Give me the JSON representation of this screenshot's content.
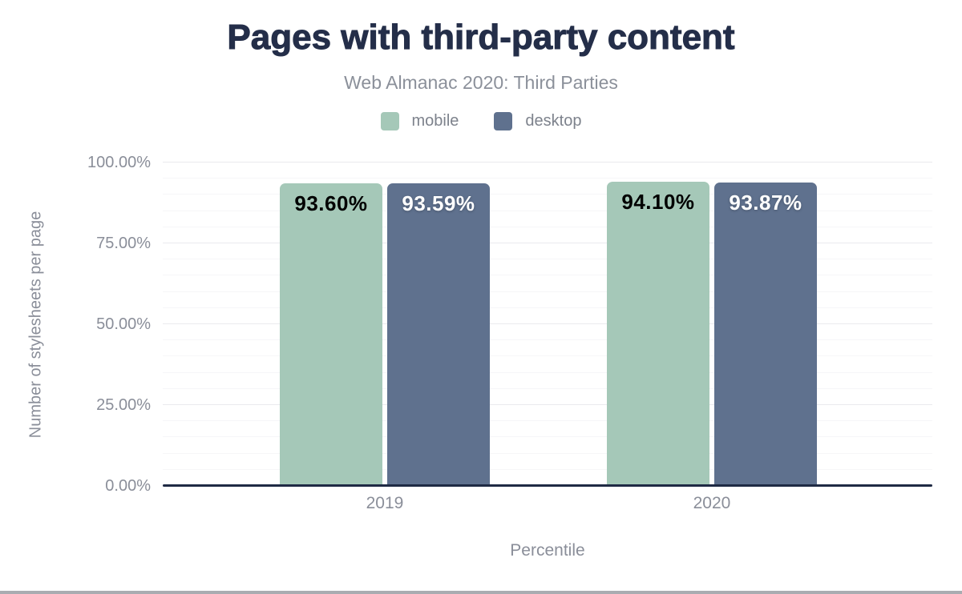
{
  "header": {
    "title": "Pages with third-party content",
    "subtitle": "Web Almanac 2020: Third Parties"
  },
  "legend": [
    {
      "label": "mobile",
      "color": "#a5c8b8"
    },
    {
      "label": "desktop",
      "color": "#5f718e"
    }
  ],
  "colors": {
    "title_navy": "#242e49",
    "axis_line": "#1f2a44",
    "text_gray": "#8a8e99",
    "mobile_green": "#a5c8b8",
    "desktop_blue": "#5f718e"
  },
  "chart_data": {
    "type": "bar",
    "title": "Pages with third-party content",
    "subtitle": "Web Almanac 2020: Third Parties",
    "xlabel": "Percentile",
    "ylabel": "Number of stylesheets per page",
    "categories": [
      "2019",
      "2020"
    ],
    "series": [
      {
        "name": "mobile",
        "color": "#a5c8b8",
        "label_color": "#000000",
        "values": [
          93.6,
          94.1
        ],
        "labels": [
          "93.60%",
          "94.10%"
        ]
      },
      {
        "name": "desktop",
        "color": "#5f718e",
        "label_color": "#ffffff",
        "values": [
          93.59,
          93.87
        ],
        "labels": [
          "93.59%",
          "93.87%"
        ]
      }
    ],
    "ylim": [
      0,
      100
    ],
    "ytick_labels": [
      "0.00%",
      "25.00%",
      "50.00%",
      "75.00%",
      "100.00%"
    ],
    "ytick_values": [
      0,
      25,
      50,
      75,
      100
    ],
    "grid": {
      "minor_step": 5,
      "major_step": 25,
      "visible": true
    },
    "legend_position": "top"
  }
}
